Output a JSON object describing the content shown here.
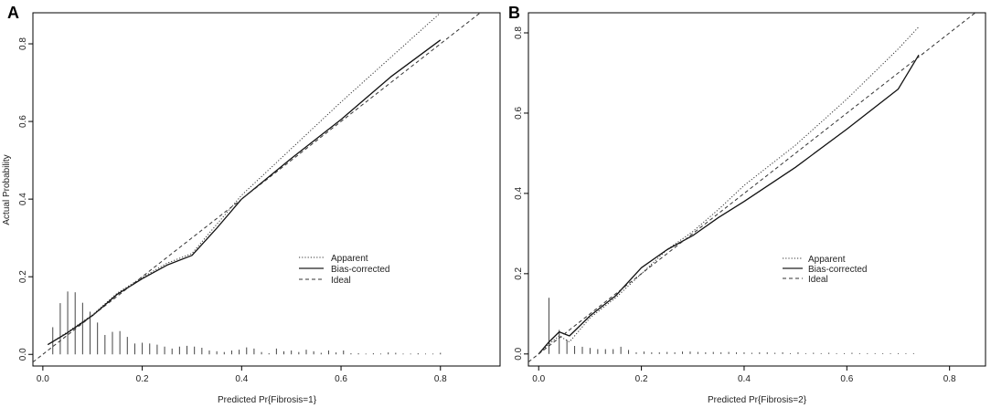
{
  "chart_data": [
    {
      "type": "line",
      "panel_label": "A",
      "xlabel": "Predicted Pr{Fibrosis=1}",
      "ylabel": "Actual Probability",
      "xlim": [
        -0.02,
        0.92
      ],
      "ylim": [
        -0.03,
        0.88
      ],
      "xticks": [
        0.0,
        0.2,
        0.4,
        0.6,
        0.8
      ],
      "yticks": [
        0.0,
        0.2,
        0.4,
        0.6,
        0.8
      ],
      "xtick_labels": [
        "0.0",
        "0.2",
        "0.4",
        "0.6",
        "0.8"
      ],
      "ytick_labels": [
        "0.0",
        "0.2",
        "0.4",
        "0.6",
        "0.8"
      ],
      "grid": false,
      "legend_position": "right-center",
      "series": [
        {
          "name": "Apparent",
          "style": "dotted",
          "x": [
            0.01,
            0.05,
            0.1,
            0.15,
            0.2,
            0.25,
            0.3,
            0.35,
            0.4,
            0.5,
            0.6,
            0.7,
            0.8
          ],
          "y": [
            0.025,
            0.058,
            0.102,
            0.158,
            0.198,
            0.235,
            0.26,
            0.335,
            0.41,
            0.53,
            0.65,
            0.765,
            0.88
          ]
        },
        {
          "name": "Bias-corrected",
          "style": "solid",
          "x": [
            0.01,
            0.05,
            0.1,
            0.15,
            0.2,
            0.25,
            0.3,
            0.35,
            0.4,
            0.5,
            0.6,
            0.7,
            0.8
          ],
          "y": [
            0.025,
            0.056,
            0.1,
            0.155,
            0.195,
            0.23,
            0.255,
            0.325,
            0.4,
            0.505,
            0.605,
            0.715,
            0.81
          ]
        },
        {
          "name": "Ideal",
          "style": "dashed",
          "x": [
            -0.02,
            0.92
          ],
          "y": [
            -0.02,
            0.92
          ]
        }
      ],
      "rug_distribution": {
        "x": [
          0.02,
          0.035,
          0.05,
          0.065,
          0.08,
          0.095,
          0.11,
          0.125,
          0.14,
          0.155,
          0.17,
          0.185,
          0.2,
          0.215,
          0.23,
          0.245,
          0.26,
          0.275,
          0.29,
          0.305,
          0.32,
          0.335,
          0.35,
          0.365,
          0.38,
          0.395,
          0.41,
          0.425,
          0.44,
          0.455,
          0.47,
          0.485,
          0.5,
          0.515,
          0.53,
          0.545,
          0.56,
          0.575,
          0.59,
          0.605,
          0.62,
          0.635,
          0.65,
          0.665,
          0.68,
          0.695,
          0.71,
          0.725,
          0.74,
          0.755,
          0.77,
          0.785,
          0.8
        ],
        "heights": [
          0.07,
          0.132,
          0.162,
          0.16,
          0.133,
          0.11,
          0.082,
          0.05,
          0.058,
          0.06,
          0.045,
          0.028,
          0.03,
          0.028,
          0.025,
          0.02,
          0.015,
          0.02,
          0.022,
          0.02,
          0.017,
          0.01,
          0.008,
          0.006,
          0.01,
          0.012,
          0.018,
          0.015,
          0.006,
          0.003,
          0.015,
          0.008,
          0.01,
          0.006,
          0.012,
          0.008,
          0.004,
          0.01,
          0.005,
          0.01,
          0.003,
          0.003,
          0.002,
          0.003,
          0.002,
          0.005,
          0.004,
          0.002,
          0.002,
          0.003,
          0.002,
          0.002,
          0.004
        ]
      }
    },
    {
      "type": "line",
      "panel_label": "B",
      "xlabel": "Predicted Pr{Fibrosis=2}",
      "ylabel": "",
      "xlim": [
        -0.02,
        0.87
      ],
      "ylim": [
        -0.03,
        0.85
      ],
      "xticks": [
        0.0,
        0.2,
        0.4,
        0.6,
        0.8
      ],
      "yticks": [
        0.0,
        0.2,
        0.4,
        0.6,
        0.8
      ],
      "xtick_labels": [
        "0.0",
        "0.2",
        "0.4",
        "0.6",
        "0.8"
      ],
      "ytick_labels": [
        "0.0",
        "0.2",
        "0.4",
        "0.6",
        "0.8"
      ],
      "grid": false,
      "legend_position": "right-center",
      "series": [
        {
          "name": "Apparent",
          "style": "dotted",
          "x": [
            0.0,
            0.02,
            0.04,
            0.06,
            0.08,
            0.1,
            0.15,
            0.2,
            0.25,
            0.3,
            0.35,
            0.4,
            0.5,
            0.6,
            0.7,
            0.74
          ],
          "y": [
            0.0,
            0.025,
            0.045,
            0.03,
            0.06,
            0.09,
            0.14,
            0.2,
            0.26,
            0.305,
            0.36,
            0.42,
            0.52,
            0.635,
            0.76,
            0.815
          ]
        },
        {
          "name": "Bias-corrected",
          "style": "solid",
          "x": [
            0.0,
            0.02,
            0.04,
            0.06,
            0.08,
            0.1,
            0.15,
            0.2,
            0.25,
            0.3,
            0.35,
            0.4,
            0.5,
            0.6,
            0.7,
            0.74
          ],
          "y": [
            0.0,
            0.03,
            0.055,
            0.045,
            0.07,
            0.095,
            0.145,
            0.215,
            0.26,
            0.295,
            0.34,
            0.38,
            0.465,
            0.56,
            0.66,
            0.745
          ]
        },
        {
          "name": "Ideal",
          "style": "dashed",
          "x": [
            -0.02,
            0.87
          ],
          "y": [
            -0.02,
            0.87
          ]
        }
      ],
      "rug_distribution": {
        "x": [
          0.02,
          0.04,
          0.055,
          0.07,
          0.085,
          0.1,
          0.115,
          0.13,
          0.145,
          0.16,
          0.175,
          0.19,
          0.205,
          0.22,
          0.235,
          0.25,
          0.265,
          0.28,
          0.295,
          0.31,
          0.325,
          0.34,
          0.355,
          0.37,
          0.385,
          0.4,
          0.415,
          0.43,
          0.445,
          0.46,
          0.475,
          0.49,
          0.505,
          0.52,
          0.535,
          0.55,
          0.565,
          0.58,
          0.595,
          0.61,
          0.625,
          0.64,
          0.655,
          0.67,
          0.685,
          0.7,
          0.715,
          0.73
        ],
        "heights": [
          0.14,
          0.06,
          0.035,
          0.02,
          0.018,
          0.015,
          0.012,
          0.012,
          0.012,
          0.018,
          0.01,
          0.004,
          0.006,
          0.004,
          0.004,
          0.005,
          0.004,
          0.006,
          0.006,
          0.005,
          0.004,
          0.005,
          0.004,
          0.005,
          0.004,
          0.004,
          0.003,
          0.004,
          0.004,
          0.003,
          0.004,
          0.002,
          0.004,
          0.002,
          0.003,
          0.002,
          0.003,
          0.002,
          0.002,
          0.003,
          0.002,
          0.002,
          0.002,
          0.002,
          0.002,
          0.002,
          0.002,
          0.002
        ]
      }
    }
  ]
}
